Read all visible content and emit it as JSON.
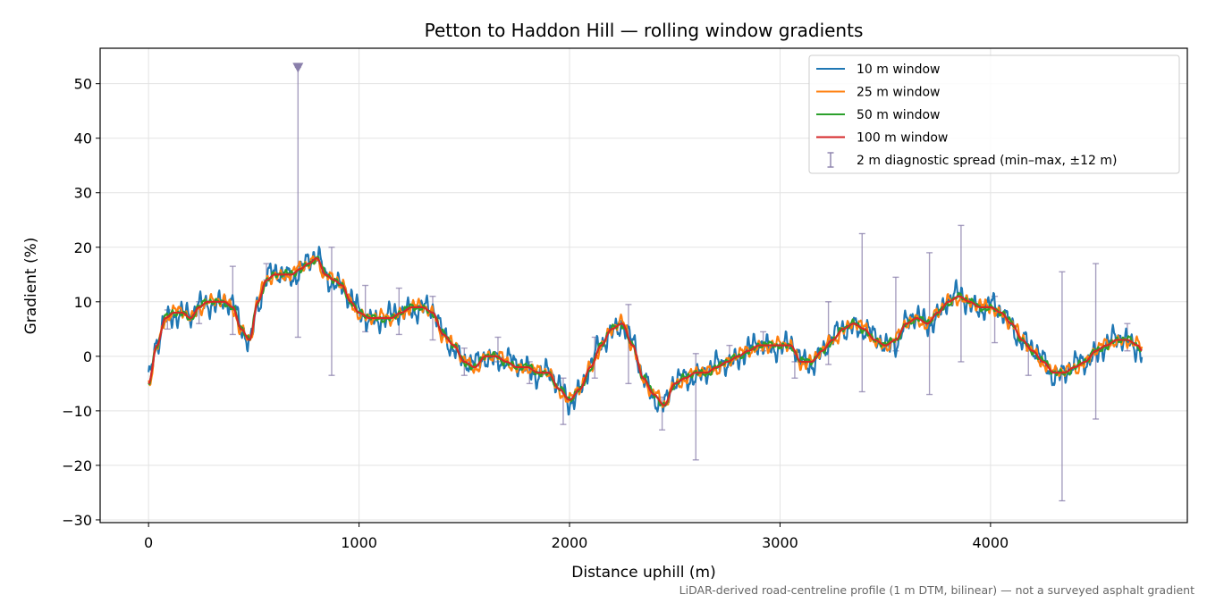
{
  "chart_data": {
    "type": "line",
    "title": "Petton to Haddon Hill — rolling window gradients",
    "xlabel": "Distance uphill (m)",
    "ylabel": "Gradient (%)",
    "footnote": "LiDAR-derived road-centreline profile (1 m DTM, bilinear) — not a surveyed asphalt gradient",
    "xlim": [
      -230,
      4935
    ],
    "ylim": [
      -30.5,
      56.5
    ],
    "xticks": [
      0,
      1000,
      2000,
      3000,
      4000
    ],
    "xtick_labels": [
      "0",
      "1000",
      "2000",
      "3000",
      "4000"
    ],
    "yticks": [
      -30,
      -20,
      -10,
      0,
      10,
      20,
      30,
      40,
      50
    ],
    "ytick_labels": [
      "−30",
      "−20",
      "−10",
      "0",
      "10",
      "20",
      "30",
      "40",
      "50"
    ],
    "grid": true,
    "legend_position": "top-right",
    "colors": {
      "w10": "#1f77b4",
      "w25": "#ff7f0e",
      "w50": "#2ca02c",
      "w100": "#d62728",
      "spread": "#8a7fab"
    },
    "profile": {
      "x": [
        0,
        40,
        80,
        120,
        160,
        200,
        240,
        280,
        320,
        360,
        400,
        440,
        480,
        520,
        560,
        600,
        640,
        680,
        720,
        760,
        800,
        840,
        880,
        920,
        960,
        1000,
        1050,
        1100,
        1150,
        1200,
        1250,
        1300,
        1350,
        1400,
        1450,
        1500,
        1550,
        1600,
        1650,
        1700,
        1750,
        1800,
        1850,
        1900,
        1950,
        2000,
        2050,
        2100,
        2150,
        2200,
        2250,
        2300,
        2350,
        2400,
        2450,
        2500,
        2550,
        2600,
        2650,
        2700,
        2750,
        2800,
        2850,
        2900,
        2950,
        3000,
        3050,
        3100,
        3150,
        3200,
        3250,
        3300,
        3350,
        3400,
        3450,
        3500,
        3550,
        3600,
        3650,
        3700,
        3750,
        3800,
        3850,
        3900,
        3950,
        4000,
        4050,
        4100,
        4150,
        4200,
        4250,
        4300,
        4350,
        4400,
        4450,
        4500,
        4550,
        4600,
        4650,
        4700,
        4720
      ],
      "y": [
        -5,
        2,
        7,
        8,
        8,
        7,
        9,
        10,
        10,
        10,
        9,
        5,
        3,
        10,
        14,
        15,
        15,
        15,
        16,
        17,
        18,
        15,
        14,
        13,
        10,
        8,
        7,
        7,
        7,
        8,
        9,
        9,
        8,
        4,
        2,
        -1,
        -2,
        0,
        0,
        -1,
        -2,
        -2,
        -3,
        -3,
        -6,
        -8,
        -6,
        -2,
        2,
        5,
        6,
        2,
        -4,
        -7,
        -9,
        -5,
        -4,
        -3,
        -3,
        -2,
        -1,
        0,
        1,
        2,
        2,
        2,
        2,
        -1,
        -1,
        1,
        3,
        5,
        6,
        5,
        3,
        2,
        3,
        6,
        7,
        6,
        8,
        10,
        11,
        10,
        9,
        9,
        8,
        6,
        3,
        1,
        -1,
        -3,
        -3,
        -2,
        -1,
        1,
        2,
        3,
        3,
        2,
        1
      ]
    },
    "series": [
      {
        "name": "10 m window",
        "key": "w10",
        "noise": 2.4,
        "smooth": 1
      },
      {
        "name": "25 m window",
        "key": "w25",
        "noise": 1.3,
        "smooth": 1
      },
      {
        "name": "50 m window",
        "key": "w50",
        "noise": 0.7,
        "smooth": 1
      },
      {
        "name": "100 m window",
        "key": "w100",
        "noise": 0,
        "smooth": 0.9
      }
    ],
    "spread": {
      "name": "2 m diagnostic spread (min–max, ±12 m)",
      "points": [
        {
          "x": 90,
          "min": 5,
          "max": 8.5
        },
        {
          "x": 240,
          "min": 6,
          "max": 10
        },
        {
          "x": 400,
          "min": 4,
          "max": 16.5
        },
        {
          "x": 560,
          "min": 14,
          "max": 17
        },
        {
          "x": 710,
          "min": 3.5,
          "max": 53,
          "clipped": true
        },
        {
          "x": 870,
          "min": -3.5,
          "max": 20
        },
        {
          "x": 1030,
          "min": 4.5,
          "max": 13
        },
        {
          "x": 1190,
          "min": 4,
          "max": 12.5
        },
        {
          "x": 1350,
          "min": 3,
          "max": 11
        },
        {
          "x": 1500,
          "min": -3.5,
          "max": 1.5
        },
        {
          "x": 1660,
          "min": -1,
          "max": 3.5
        },
        {
          "x": 1810,
          "min": -5,
          "max": -1
        },
        {
          "x": 1970,
          "min": -12.5,
          "max": -4
        },
        {
          "x": 2120,
          "min": -4,
          "max": 3.5
        },
        {
          "x": 2280,
          "min": -5,
          "max": 9.5
        },
        {
          "x": 2440,
          "min": -13.5,
          "max": -7.5
        },
        {
          "x": 2600,
          "min": -19,
          "max": 0.5
        },
        {
          "x": 2760,
          "min": -1,
          "max": 2
        },
        {
          "x": 2920,
          "min": 1,
          "max": 4.5
        },
        {
          "x": 3070,
          "min": -4,
          "max": -1
        },
        {
          "x": 3230,
          "min": -1.5,
          "max": 10
        },
        {
          "x": 3390,
          "min": -6.5,
          "max": 22.5
        },
        {
          "x": 3550,
          "min": 1,
          "max": 14.5
        },
        {
          "x": 3710,
          "min": -7,
          "max": 19
        },
        {
          "x": 3860,
          "min": -1,
          "max": 24
        },
        {
          "x": 4020,
          "min": 2.5,
          "max": 11
        },
        {
          "x": 4180,
          "min": -3.5,
          "max": 1
        },
        {
          "x": 4340,
          "min": -26.5,
          "max": 15.5
        },
        {
          "x": 4500,
          "min": -11.5,
          "max": 17
        },
        {
          "x": 4650,
          "min": 1,
          "max": 6
        }
      ]
    }
  }
}
